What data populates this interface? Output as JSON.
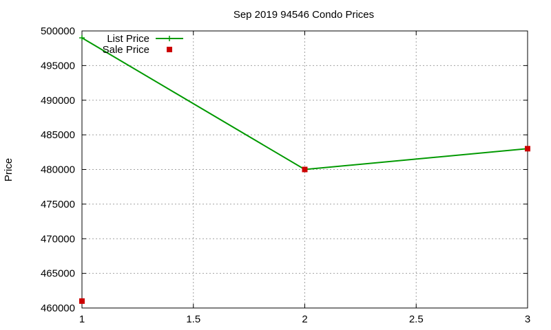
{
  "chart_data": {
    "type": "line",
    "title": "Sep 2019 94546 Condo Prices",
    "xlabel": "",
    "ylabel": "Price",
    "xlim": [
      1,
      3
    ],
    "ylim": [
      460000,
      500000
    ],
    "xticks": [
      1,
      1.5,
      2,
      2.5,
      3
    ],
    "yticks": [
      460000,
      465000,
      470000,
      475000,
      480000,
      485000,
      490000,
      495000,
      500000
    ],
    "xtick_labels": [
      "1",
      "1.5",
      "2",
      "2.5",
      "3"
    ],
    "ytick_labels": [
      "460000",
      "465000",
      "470000",
      "475000",
      "480000",
      "485000",
      "490000",
      "495000",
      "500000"
    ],
    "grid": true,
    "legend_position": "top-left",
    "series": [
      {
        "name": "List Price",
        "style": "linespoints",
        "marker": "plus",
        "color": "#009900",
        "x": [
          1,
          2,
          3
        ],
        "y": [
          499000,
          480000,
          483000
        ]
      },
      {
        "name": "Sale Price",
        "style": "points",
        "marker": "square",
        "color": "#cc0000",
        "x": [
          1,
          2,
          3
        ],
        "y": [
          461000,
          480000,
          483000
        ]
      }
    ]
  }
}
